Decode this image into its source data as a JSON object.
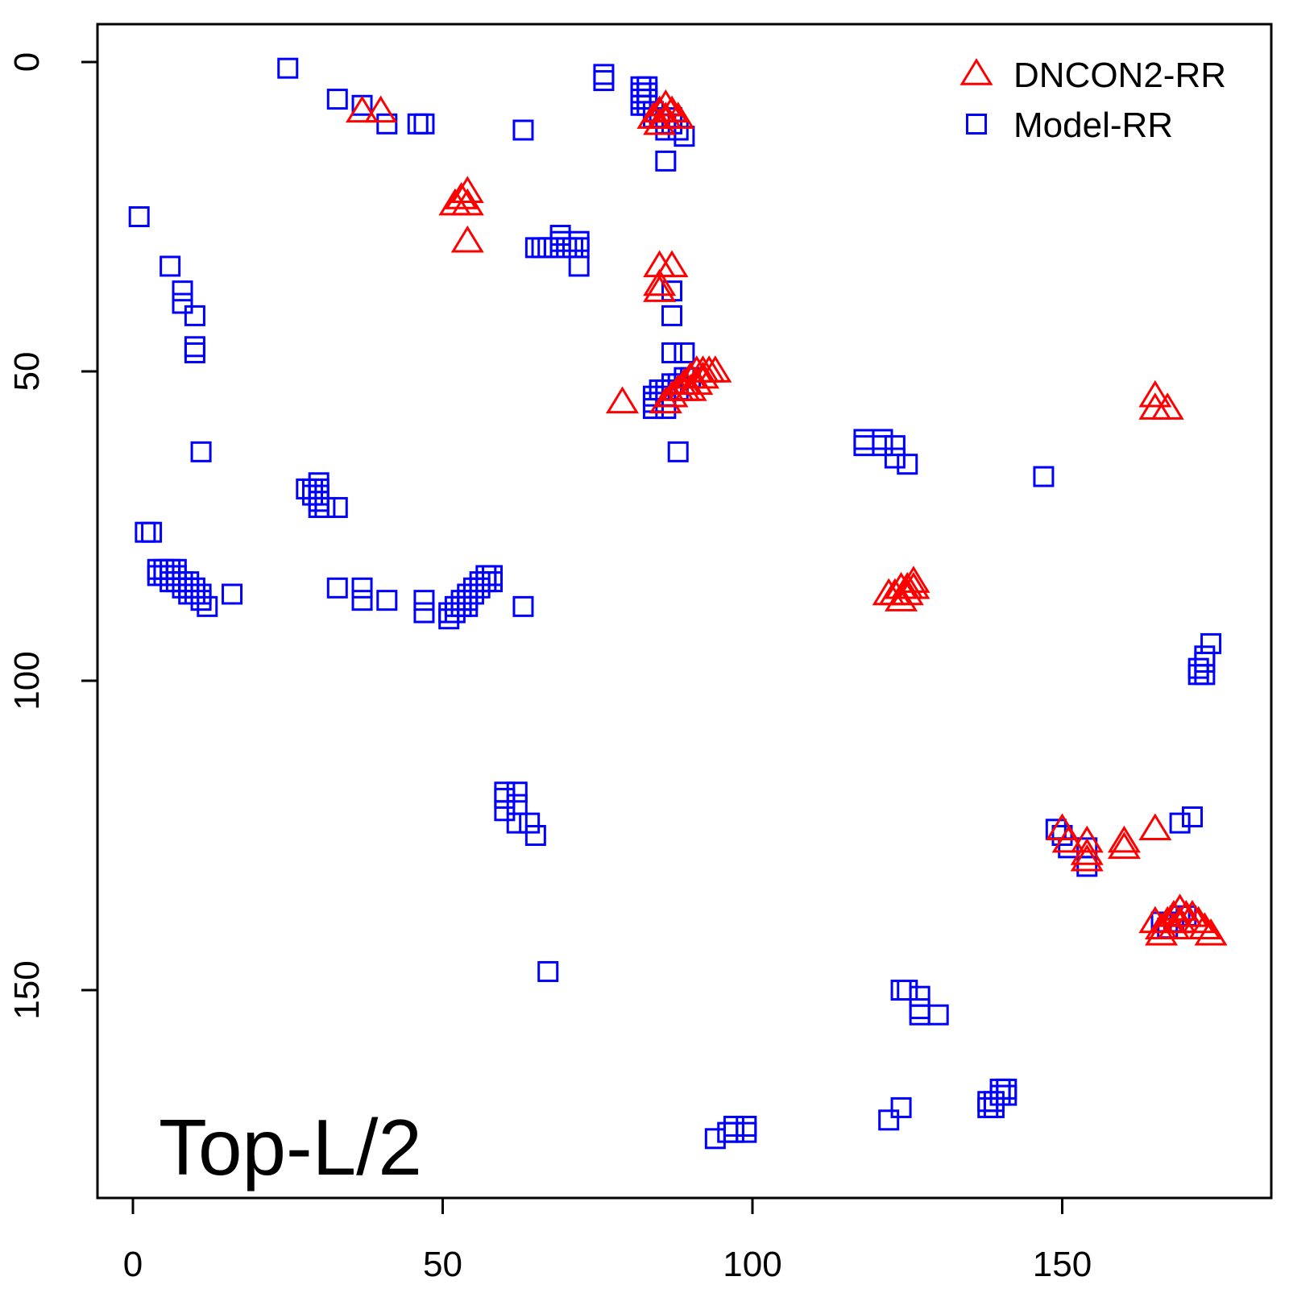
{
  "chart_data": {
    "type": "scatter",
    "title": "",
    "xlabel": "",
    "ylabel": "",
    "xlim": [
      -6,
      184
    ],
    "ylim": [
      -6,
      184
    ],
    "y_inverted": true,
    "x_ticks": [
      0,
      50,
      100,
      150
    ],
    "y_ticks": [
      0,
      50,
      100,
      150
    ],
    "x_tick_labels": [
      "0",
      "50",
      "100",
      "150"
    ],
    "y_tick_labels": [
      "0",
      "50",
      "100",
      "150"
    ],
    "grid": false,
    "legend_position": "top-right",
    "annotation": "Top-L/2",
    "series": [
      {
        "name": "DNCON2-RR",
        "marker": "triangle",
        "color": "#ff0000",
        "points": [
          [
            37,
            8
          ],
          [
            40,
            8
          ],
          [
            52,
            23
          ],
          [
            53,
            22
          ],
          [
            54,
            21
          ],
          [
            54,
            23
          ],
          [
            54,
            29
          ],
          [
            84,
            9
          ],
          [
            85,
            8
          ],
          [
            85,
            10
          ],
          [
            86,
            7
          ],
          [
            86,
            9
          ],
          [
            87,
            8
          ],
          [
            88,
            9
          ],
          [
            85,
            33
          ],
          [
            87,
            33
          ],
          [
            85,
            37
          ],
          [
            85,
            36
          ],
          [
            79,
            55
          ],
          [
            86,
            55
          ],
          [
            87,
            54
          ],
          [
            88,
            53
          ],
          [
            89,
            53
          ],
          [
            89,
            52
          ],
          [
            90,
            51
          ],
          [
            90,
            53
          ],
          [
            91,
            50
          ],
          [
            91,
            52
          ],
          [
            92,
            50
          ],
          [
            92,
            51
          ],
          [
            93,
            50
          ],
          [
            94,
            50
          ],
          [
            122,
            86
          ],
          [
            123,
            86
          ],
          [
            124,
            85
          ],
          [
            124,
            87
          ],
          [
            125,
            85
          ],
          [
            125,
            86
          ],
          [
            126,
            84
          ],
          [
            126,
            85
          ],
          [
            165,
            54
          ],
          [
            165,
            56
          ],
          [
            167,
            56
          ],
          [
            150,
            124
          ],
          [
            151,
            126
          ],
          [
            154,
            126
          ],
          [
            154,
            128
          ],
          [
            154,
            129
          ],
          [
            160,
            126
          ],
          [
            160,
            127
          ],
          [
            165,
            124
          ],
          [
            165,
            139
          ],
          [
            166,
            140
          ],
          [
            166,
            141
          ],
          [
            167,
            139
          ],
          [
            168,
            138
          ],
          [
            168,
            140
          ],
          [
            169,
            137
          ],
          [
            169,
            139
          ],
          [
            170,
            138
          ],
          [
            171,
            138
          ],
          [
            172,
            139
          ],
          [
            173,
            140
          ],
          [
            174,
            141
          ]
        ]
      },
      {
        "name": "Model-RR",
        "marker": "square",
        "color": "#0000ff",
        "points": [
          [
            25,
            1
          ],
          [
            33,
            6
          ],
          [
            37,
            7
          ],
          [
            41,
            10
          ],
          [
            46,
            10
          ],
          [
            47,
            10
          ],
          [
            63,
            11
          ],
          [
            76,
            2
          ],
          [
            76,
            3
          ],
          [
            82,
            4
          ],
          [
            82,
            5
          ],
          [
            82,
            6
          ],
          [
            82,
            7
          ],
          [
            83,
            4
          ],
          [
            83,
            5
          ],
          [
            83,
            6
          ],
          [
            83,
            7
          ],
          [
            84,
            8
          ],
          [
            84,
            9
          ],
          [
            85,
            9
          ],
          [
            86,
            10
          ],
          [
            86,
            11
          ],
          [
            87,
            9
          ],
          [
            87,
            10
          ],
          [
            88,
            11
          ],
          [
            89,
            12
          ],
          [
            86,
            16
          ],
          [
            1,
            25
          ],
          [
            6,
            33
          ],
          [
            8,
            37
          ],
          [
            8,
            39
          ],
          [
            10,
            41
          ],
          [
            10,
            46
          ],
          [
            10,
            47
          ],
          [
            11,
            63
          ],
          [
            65,
            30
          ],
          [
            66,
            30
          ],
          [
            67,
            30
          ],
          [
            68,
            30
          ],
          [
            69,
            28
          ],
          [
            69,
            29
          ],
          [
            70,
            30
          ],
          [
            71,
            30
          ],
          [
            72,
            29
          ],
          [
            72,
            30
          ],
          [
            72,
            33
          ],
          [
            87,
            37
          ],
          [
            87,
            41
          ],
          [
            87,
            47
          ],
          [
            89,
            47
          ],
          [
            84,
            56
          ],
          [
            86,
            56
          ],
          [
            88,
            63
          ],
          [
            84,
            54
          ],
          [
            84,
            55
          ],
          [
            85,
            53
          ],
          [
            86,
            53
          ],
          [
            86,
            54
          ],
          [
            87,
            52
          ],
          [
            88,
            52
          ],
          [
            88,
            53
          ],
          [
            89,
            51
          ],
          [
            90,
            51
          ],
          [
            2,
            76
          ],
          [
            3,
            76
          ],
          [
            4,
            82
          ],
          [
            4,
            83
          ],
          [
            5,
            82
          ],
          [
            5,
            83
          ],
          [
            6,
            82
          ],
          [
            6,
            83
          ],
          [
            7,
            82
          ],
          [
            7,
            83
          ],
          [
            6,
            84
          ],
          [
            7,
            84
          ],
          [
            8,
            84
          ],
          [
            8,
            85
          ],
          [
            9,
            84
          ],
          [
            9,
            85
          ],
          [
            9,
            86
          ],
          [
            10,
            85
          ],
          [
            10,
            86
          ],
          [
            11,
            86
          ],
          [
            11,
            87
          ],
          [
            12,
            88
          ],
          [
            16,
            86
          ],
          [
            28,
            69
          ],
          [
            29,
            69
          ],
          [
            29,
            70
          ],
          [
            30,
            68
          ],
          [
            30,
            69
          ],
          [
            30,
            70
          ],
          [
            30,
            72
          ],
          [
            30,
            71
          ],
          [
            31,
            72
          ],
          [
            33,
            72
          ],
          [
            33,
            85
          ],
          [
            37,
            85
          ],
          [
            37,
            87
          ],
          [
            41,
            87
          ],
          [
            47,
            87
          ],
          [
            47,
            89
          ],
          [
            51,
            89
          ],
          [
            51,
            90
          ],
          [
            52,
            88
          ],
          [
            52,
            89
          ],
          [
            53,
            87
          ],
          [
            53,
            88
          ],
          [
            54,
            87
          ],
          [
            54,
            88
          ],
          [
            54,
            86
          ],
          [
            55,
            86
          ],
          [
            55,
            85
          ],
          [
            56,
            84
          ],
          [
            56,
            85
          ],
          [
            57,
            84
          ],
          [
            57,
            83
          ],
          [
            58,
            84
          ],
          [
            58,
            83
          ],
          [
            63,
            88
          ],
          [
            118,
            61
          ],
          [
            118,
            62
          ],
          [
            121,
            61
          ],
          [
            121,
            62
          ],
          [
            123,
            62
          ],
          [
            123,
            64
          ],
          [
            125,
            65
          ],
          [
            147,
            67
          ],
          [
            174,
            94
          ],
          [
            173,
            96
          ],
          [
            172,
            98
          ],
          [
            172,
            99
          ],
          [
            173,
            99
          ],
          [
            173,
            97
          ],
          [
            60,
            118
          ],
          [
            60,
            119
          ],
          [
            60,
            121
          ],
          [
            62,
            118
          ],
          [
            62,
            120
          ],
          [
            62,
            123
          ],
          [
            64,
            123
          ],
          [
            65,
            125
          ],
          [
            67,
            147
          ],
          [
            149,
            124
          ],
          [
            150,
            125
          ],
          [
            151,
            127
          ],
          [
            154,
            127
          ],
          [
            154,
            130
          ],
          [
            169,
            123
          ],
          [
            171,
            122
          ],
          [
            166,
            139
          ],
          [
            167,
            140
          ],
          [
            168,
            139
          ],
          [
            169,
            138
          ],
          [
            170,
            138
          ],
          [
            124,
            150
          ],
          [
            125,
            150
          ],
          [
            127,
            151
          ],
          [
            127,
            153
          ],
          [
            127,
            154
          ],
          [
            130,
            154
          ],
          [
            94,
            174
          ],
          [
            96,
            173
          ],
          [
            97,
            172
          ],
          [
            99,
            172
          ],
          [
            97,
            173
          ],
          [
            99,
            173
          ],
          [
            122,
            171
          ],
          [
            124,
            169
          ],
          [
            138,
            168
          ],
          [
            138,
            169
          ],
          [
            139,
            168
          ],
          [
            139,
            169
          ],
          [
            140,
            167
          ],
          [
            140,
            166
          ],
          [
            141,
            166
          ],
          [
            141,
            167
          ]
        ]
      }
    ]
  }
}
